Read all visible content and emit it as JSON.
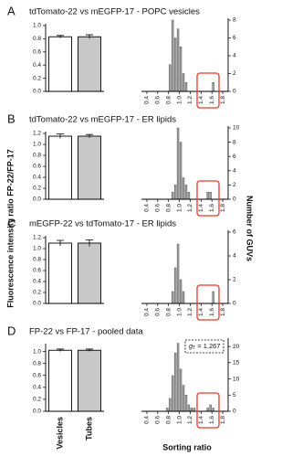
{
  "axis_labels": {
    "y_left": "Fluorescence intensity ratio FP-22/FP-17",
    "y_right": "Number of GUVs",
    "x_right": "Sorting ratio"
  },
  "chart_data": [
    {
      "type": "bar",
      "panel": "A",
      "title": "tdTomato-22 vs mEGFP-17 - POPC vesicles",
      "categories": [
        null,
        null
      ],
      "values": [
        0.83,
        0.83
      ],
      "errors": [
        0.02,
        0.03
      ],
      "colors": [
        "#ffffff",
        "#c8c8c8"
      ],
      "ylim": [
        0,
        1.0
      ],
      "yticks": [
        {
          "value": 0,
          "label": "0.0"
        },
        0.2,
        0.4,
        0.6,
        0.8,
        {
          "value": 1,
          "label": "1.0"
        }
      ]
    },
    {
      "type": "histogram",
      "color": "#a6a6a6",
      "bins": [
        0.4,
        0.45,
        0.5,
        0.55,
        0.6,
        0.65,
        0.7,
        0.75,
        0.8,
        0.85,
        0.9,
        0.95,
        1.0,
        1.05,
        1.1,
        1.15,
        1.2,
        1.25,
        1.3,
        1.35,
        1.4,
        1.45,
        1.5,
        1.55,
        1.6,
        1.65,
        1.7,
        1.75,
        1.8
      ],
      "counts": [
        0,
        0,
        0,
        0,
        0,
        0,
        0,
        0,
        3,
        8,
        6,
        7,
        5,
        2,
        1,
        0,
        0,
        0,
        0,
        0,
        0,
        0,
        0,
        0,
        1,
        0,
        0,
        0
      ],
      "xlim": [
        0.3,
        1.9
      ],
      "ylim": [
        0,
        8
      ],
      "yticks": [
        0,
        2,
        4,
        6,
        8
      ],
      "xticks": [
        0.4,
        0.6,
        0.8,
        {
          "value": 1,
          "label": "1.0"
        },
        1.2,
        1.4,
        1.6,
        1.8
      ]
    },
    {
      "type": "bar",
      "panel": "B",
      "title": "tdTomato-22 vs mEGFP-17 - ER lipids",
      "categories": [
        null,
        null
      ],
      "values": [
        1.15,
        1.15
      ],
      "errors": [
        0.04,
        0.03
      ],
      "colors": [
        "#ffffff",
        "#c8c8c8"
      ],
      "ylim": [
        0,
        1.2
      ],
      "yticks": [
        {
          "value": 0,
          "label": "0.0"
        },
        0.2,
        0.4,
        0.6,
        0.8,
        {
          "value": 1,
          "label": "1.0"
        },
        1.2
      ]
    },
    {
      "type": "histogram",
      "color": "#a6a6a6",
      "bins": [
        0.4,
        0.45,
        0.5,
        0.55,
        0.6,
        0.65,
        0.7,
        0.75,
        0.8,
        0.85,
        0.9,
        0.95,
        1.0,
        1.05,
        1.1,
        1.15,
        1.2,
        1.25,
        1.3,
        1.35,
        1.4,
        1.45,
        1.5,
        1.55,
        1.6,
        1.65,
        1.7,
        1.75,
        1.8
      ],
      "counts": [
        0,
        0,
        0,
        0,
        0,
        0,
        0,
        0,
        0,
        1,
        2,
        10,
        8,
        3,
        2,
        1,
        0,
        0,
        0,
        0,
        0,
        0,
        1,
        1,
        0,
        0,
        0,
        0
      ],
      "xlim": [
        0.3,
        1.9
      ],
      "ylim": [
        0,
        10
      ],
      "yticks": [
        0,
        2,
        4,
        6,
        8,
        10
      ],
      "xticks": [
        0.4,
        0.6,
        0.8,
        {
          "value": 1,
          "label": "1.0"
        },
        1.2,
        1.4,
        1.6,
        1.8
      ]
    },
    {
      "type": "bar",
      "panel": "C",
      "title": "mEGFP-22 vs tdTomato-17 - ER lipids",
      "categories": [
        null,
        null
      ],
      "values": [
        1.1,
        1.1
      ],
      "errors": [
        0.05,
        0.06
      ],
      "colors": [
        "#ffffff",
        "#c8c8c8"
      ],
      "ylim": [
        0,
        1.2
      ],
      "yticks": [
        {
          "value": 0,
          "label": "0.0"
        },
        0.2,
        0.4,
        0.6,
        0.8,
        {
          "value": 1,
          "label": "1.0"
        },
        1.2
      ]
    },
    {
      "type": "histogram",
      "color": "#a6a6a6",
      "bins": [
        0.4,
        0.45,
        0.5,
        0.55,
        0.6,
        0.65,
        0.7,
        0.75,
        0.8,
        0.85,
        0.9,
        0.95,
        1.0,
        1.05,
        1.1,
        1.15,
        1.2,
        1.25,
        1.3,
        1.35,
        1.4,
        1.45,
        1.5,
        1.55,
        1.6,
        1.65,
        1.7,
        1.75,
        1.8
      ],
      "counts": [
        0,
        0,
        0,
        0,
        0,
        0,
        0,
        0,
        0,
        1,
        3,
        5,
        2,
        1,
        0,
        0,
        0,
        0,
        0,
        0,
        0,
        0,
        0,
        0,
        1,
        0,
        0,
        0
      ],
      "xlim": [
        0.3,
        1.9
      ],
      "ylim": [
        0,
        6
      ],
      "yticks": [
        0,
        2,
        4,
        6
      ],
      "xticks": [
        0.4,
        0.6,
        0.8,
        {
          "value": 1,
          "label": "1.0"
        },
        1.2,
        1.4,
        1.6,
        1.8
      ]
    },
    {
      "type": "bar",
      "panel": "D",
      "title": "FP-22 vs FP-17 - pooled data",
      "categories": [
        "Vesicles",
        "Tubes"
      ],
      "values": [
        1.02,
        1.02
      ],
      "errors": [
        0.02,
        0.02
      ],
      "colors": [
        "#ffffff",
        "#c8c8c8"
      ],
      "ylim": [
        0,
        1.1
      ],
      "yticks": [
        {
          "value": 0,
          "label": "0.0"
        },
        0.2,
        0.4,
        0.6,
        0.8,
        {
          "value": 1,
          "label": "1.0"
        }
      ]
    },
    {
      "type": "histogram",
      "color": "#a6a6a6",
      "bins": [
        0.4,
        0.45,
        0.5,
        0.55,
        0.6,
        0.65,
        0.7,
        0.75,
        0.8,
        0.85,
        0.9,
        0.95,
        1.0,
        1.05,
        1.1,
        1.15,
        1.2,
        1.25,
        1.3,
        1.35,
        1.4,
        1.45,
        1.5,
        1.55,
        1.6,
        1.65,
        1.7,
        1.75,
        1.8
      ],
      "counts": [
        0,
        0,
        0,
        0,
        0,
        0,
        0,
        1,
        4,
        11,
        18,
        21,
        13,
        8,
        5,
        2,
        1,
        1,
        0,
        0,
        0,
        0,
        1,
        2,
        1,
        0,
        0,
        0
      ],
      "xlim": [
        0.3,
        1.9
      ],
      "ylim": [
        0,
        22
      ],
      "yticks": [
        0,
        5,
        10,
        15,
        20
      ],
      "xticks": [
        0.4,
        0.6,
        0.8,
        {
          "value": 1,
          "label": "1.0"
        },
        1.2,
        1.4,
        1.6,
        1.8
      ],
      "annotation": {
        "symbol": "g",
        "subscript": "T",
        "text": "= 1.267"
      }
    }
  ]
}
